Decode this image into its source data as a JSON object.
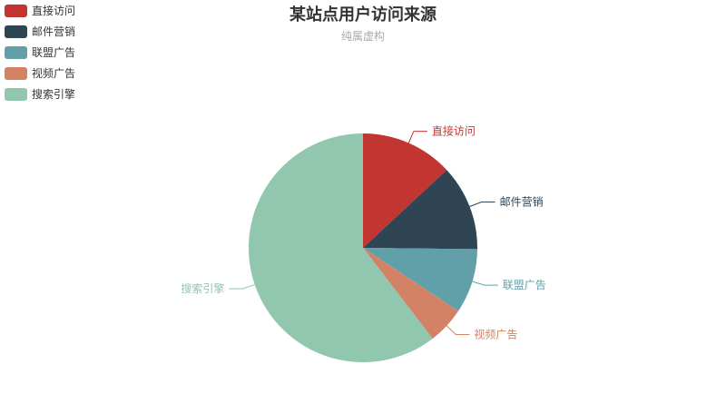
{
  "chart_data": {
    "type": "pie",
    "title": "某站点用户访问来源",
    "subtitle": "纯属虚构",
    "legend_position": "top-left",
    "categories": [
      "直接访问",
      "邮件营销",
      "联盟广告",
      "视频广告",
      "搜索引擎"
    ],
    "values": [
      335,
      310,
      234,
      135,
      1548
    ],
    "colors": [
      "#c23531",
      "#2f4554",
      "#61a0a8",
      "#d48265",
      "#91c7ae"
    ],
    "start_angle_deg": 90,
    "direction": "clockwise"
  }
}
